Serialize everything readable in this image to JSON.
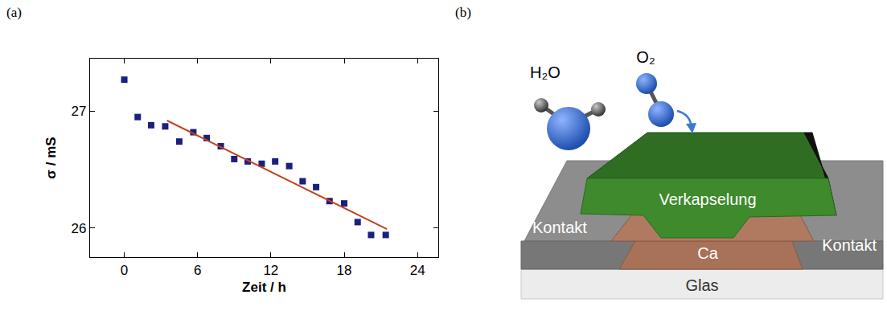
{
  "chart_data": {
    "type": "scatter",
    "panel": "(a)",
    "x_label": "Zeit / h",
    "y_label": "σ / mS",
    "xlim": [
      -2.8,
      25.7
    ],
    "xticks": [
      0,
      6,
      12,
      18,
      24
    ],
    "ylim": [
      25.75,
      27.45
    ],
    "yticks": [
      26,
      27
    ],
    "grid": false,
    "series": [
      {
        "type": "scatter",
        "marker": "square",
        "color": "#1b1f7e",
        "x": [
          0,
          1.1,
          2.2,
          3.35,
          4.5,
          5.65,
          6.75,
          7.9,
          9.0,
          10.1,
          11.25,
          12.35,
          13.5,
          14.6,
          15.7,
          16.8,
          18.0,
          19.1,
          20.2,
          21.4
        ],
        "values": [
          27.27,
          26.95,
          26.88,
          26.87,
          26.74,
          26.82,
          26.77,
          26.7,
          26.59,
          26.57,
          26.55,
          26.57,
          26.53,
          26.4,
          26.35,
          26.23,
          26.21,
          26.05,
          25.94,
          25.94
        ]
      },
      {
        "type": "line",
        "line_style": "solid",
        "color": "#c0431f",
        "x": [
          3.5,
          21.5
        ],
        "values": [
          26.92,
          25.99
        ]
      }
    ]
  },
  "diagram": {
    "panel": "(b)",
    "molecules": [
      "H₂O",
      "O₂"
    ],
    "layers": {
      "encapsulation": "Verkapselung",
      "contacts": [
        "Kontakt",
        "Kontakt"
      ],
      "active": "Ca",
      "substrate": "Glas"
    }
  }
}
